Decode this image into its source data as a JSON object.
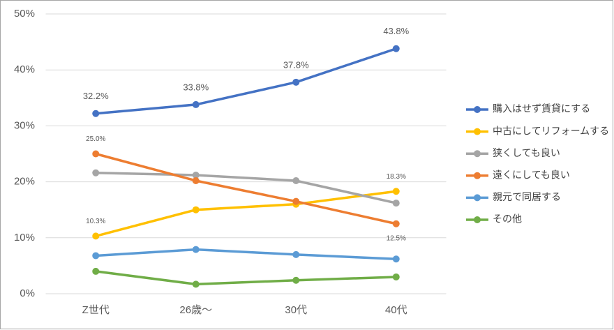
{
  "chart_data": {
    "type": "line",
    "categories": [
      "Z世代",
      "26歳～",
      "30代",
      "40代"
    ],
    "series": [
      {
        "name": "購入はせず賃貸にする",
        "color": "#4472c4",
        "values": [
          32.2,
          33.8,
          37.8,
          43.8
        ],
        "value_labels": [
          "32.2%",
          "33.8%",
          "37.8%",
          "43.8%"
        ]
      },
      {
        "name": "中古にしてリフォームする",
        "color": "#ffc000",
        "values": [
          10.3,
          15.0,
          16.0,
          18.3
        ],
        "value_labels": [
          "10.3%",
          null,
          null,
          "18.3%"
        ]
      },
      {
        "name": "狭くしても良い",
        "color": "#a5a5a5",
        "values": [
          21.6,
          21.2,
          20.2,
          16.2
        ]
      },
      {
        "name": "遠くにしても良い",
        "color": "#ed7d31",
        "values": [
          25.0,
          20.2,
          16.5,
          12.5
        ],
        "value_labels": [
          "25.0%",
          null,
          null,
          "12.5%"
        ]
      },
      {
        "name": "親元で同居する",
        "color": "#5b9bd5",
        "values": [
          6.8,
          7.9,
          7.0,
          6.2
        ]
      },
      {
        "name": "その他",
        "color": "#70ad47",
        "values": [
          4.0,
          1.7,
          2.4,
          3.0
        ]
      }
    ],
    "ylim": [
      0,
      50
    ],
    "yticks": [
      {
        "value": 0,
        "label": "0%"
      },
      {
        "value": 10,
        "label": "10%"
      },
      {
        "value": 20,
        "label": "20%"
      },
      {
        "value": 30,
        "label": "30%"
      },
      {
        "value": 40,
        "label": "40%"
      },
      {
        "value": 50,
        "label": "50%"
      }
    ],
    "grid": true,
    "legend": "right"
  }
}
